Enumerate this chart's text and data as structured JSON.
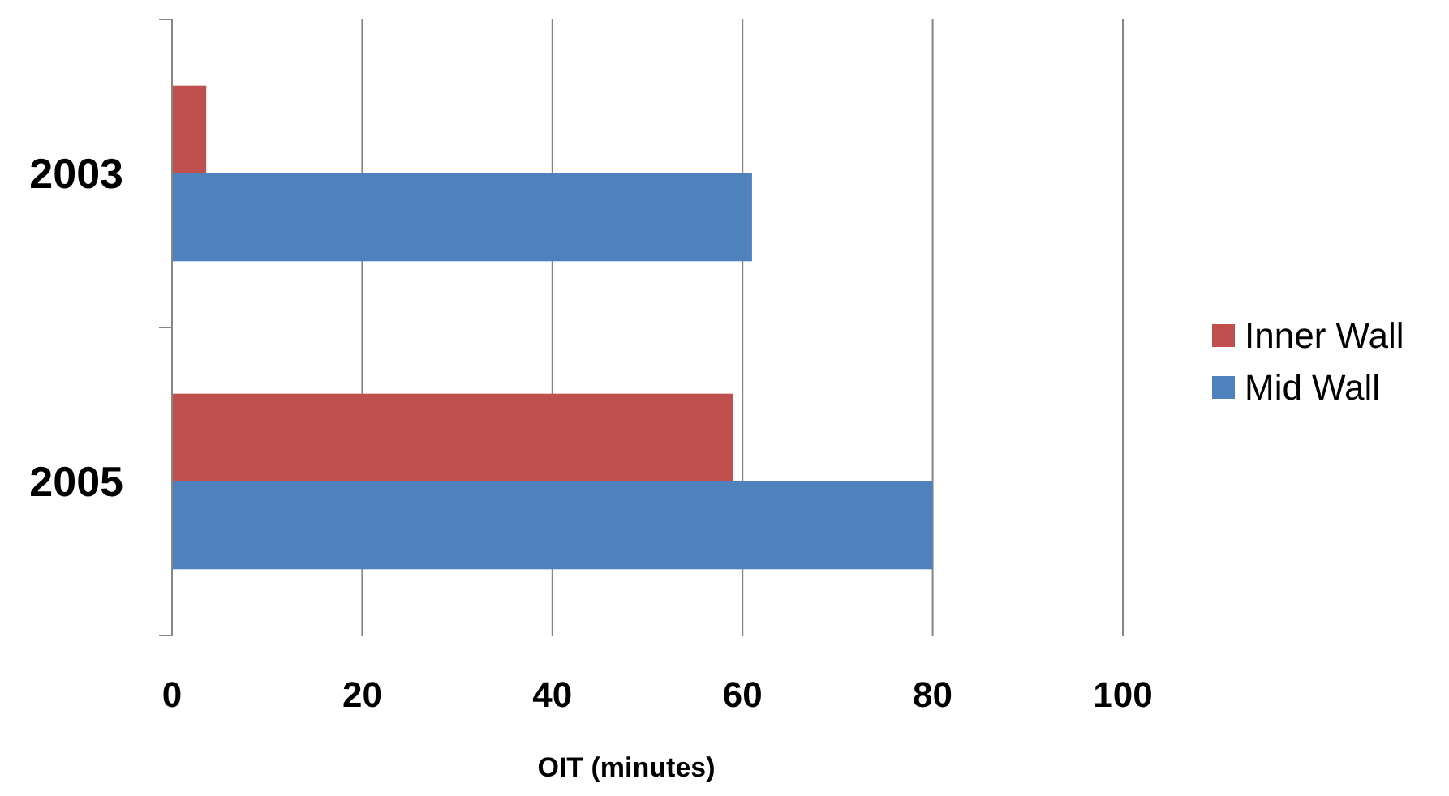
{
  "chart_data": {
    "type": "bar",
    "orientation": "horizontal",
    "categories": [
      "2003",
      "2005"
    ],
    "series": [
      {
        "name": "Inner Wall",
        "color": "#c0504d",
        "values": [
          3.6,
          59
        ]
      },
      {
        "name": "Mid Wall",
        "color": "#4f81bd",
        "values": [
          61,
          80
        ]
      }
    ],
    "xlabel": "OIT (minutes)",
    "xlim": [
      0,
      100
    ],
    "xticks": [
      0,
      20,
      40,
      60,
      80,
      100
    ],
    "grid": "x",
    "legend": "right"
  }
}
